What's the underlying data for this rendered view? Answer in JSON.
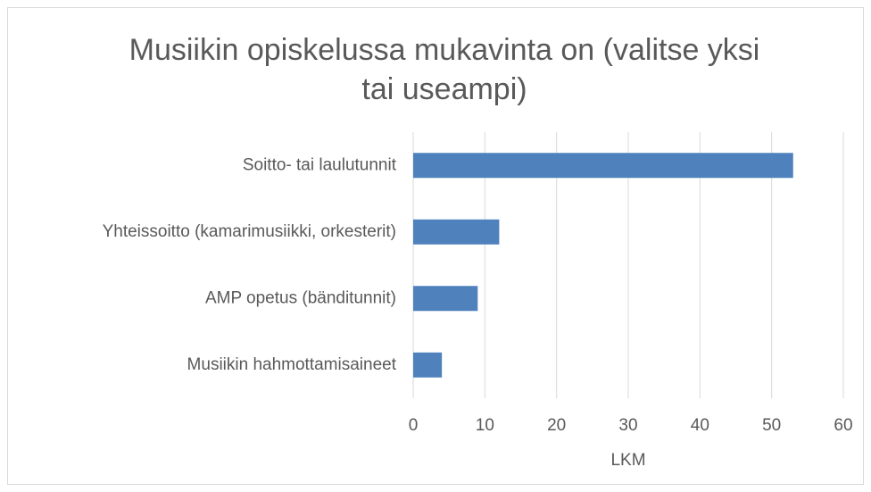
{
  "chart_data": {
    "type": "hbar",
    "title": "Musiikin opiskelussa mukavinta on (valitse yksi tai useampi)",
    "categories": [
      "Soitto- tai laulutunnit",
      "Yhteissoitto (kamarimusiikki, orkesterit)",
      "AMP opetus (bänditunnit)",
      "Musiikin hahmottamisaineet"
    ],
    "values": [
      53,
      12,
      9,
      4
    ],
    "color": "#4f81bd",
    "xlim": [
      0,
      60
    ],
    "xticks": [
      0,
      10,
      20,
      30,
      40,
      50,
      60
    ],
    "xlabel": "LKM",
    "grid": true
  }
}
